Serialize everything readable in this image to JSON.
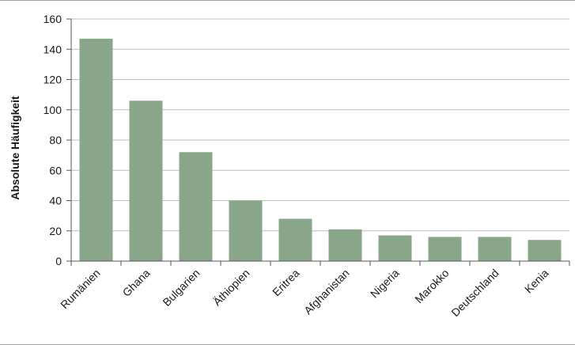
{
  "chart_data": {
    "type": "bar",
    "title": "",
    "xlabel": "",
    "ylabel": "Absolute Häufigkeit",
    "categories": [
      "Rumänien",
      "Ghana",
      "Bulgarien",
      "Äthiopien",
      "Eritrea",
      "Afghanistan",
      "Nigeria",
      "Marokko",
      "Deutschland",
      "Kenia"
    ],
    "values": [
      147,
      106,
      72,
      40,
      28,
      21,
      17,
      16,
      16,
      14
    ],
    "ylim": [
      0,
      160
    ],
    "yticks": [
      0,
      20,
      40,
      60,
      80,
      100,
      120,
      140,
      160
    ],
    "grid": true,
    "colors": {
      "bar": "#8aa68a",
      "grid": "#bdbdbd",
      "axis": "#555555"
    }
  }
}
